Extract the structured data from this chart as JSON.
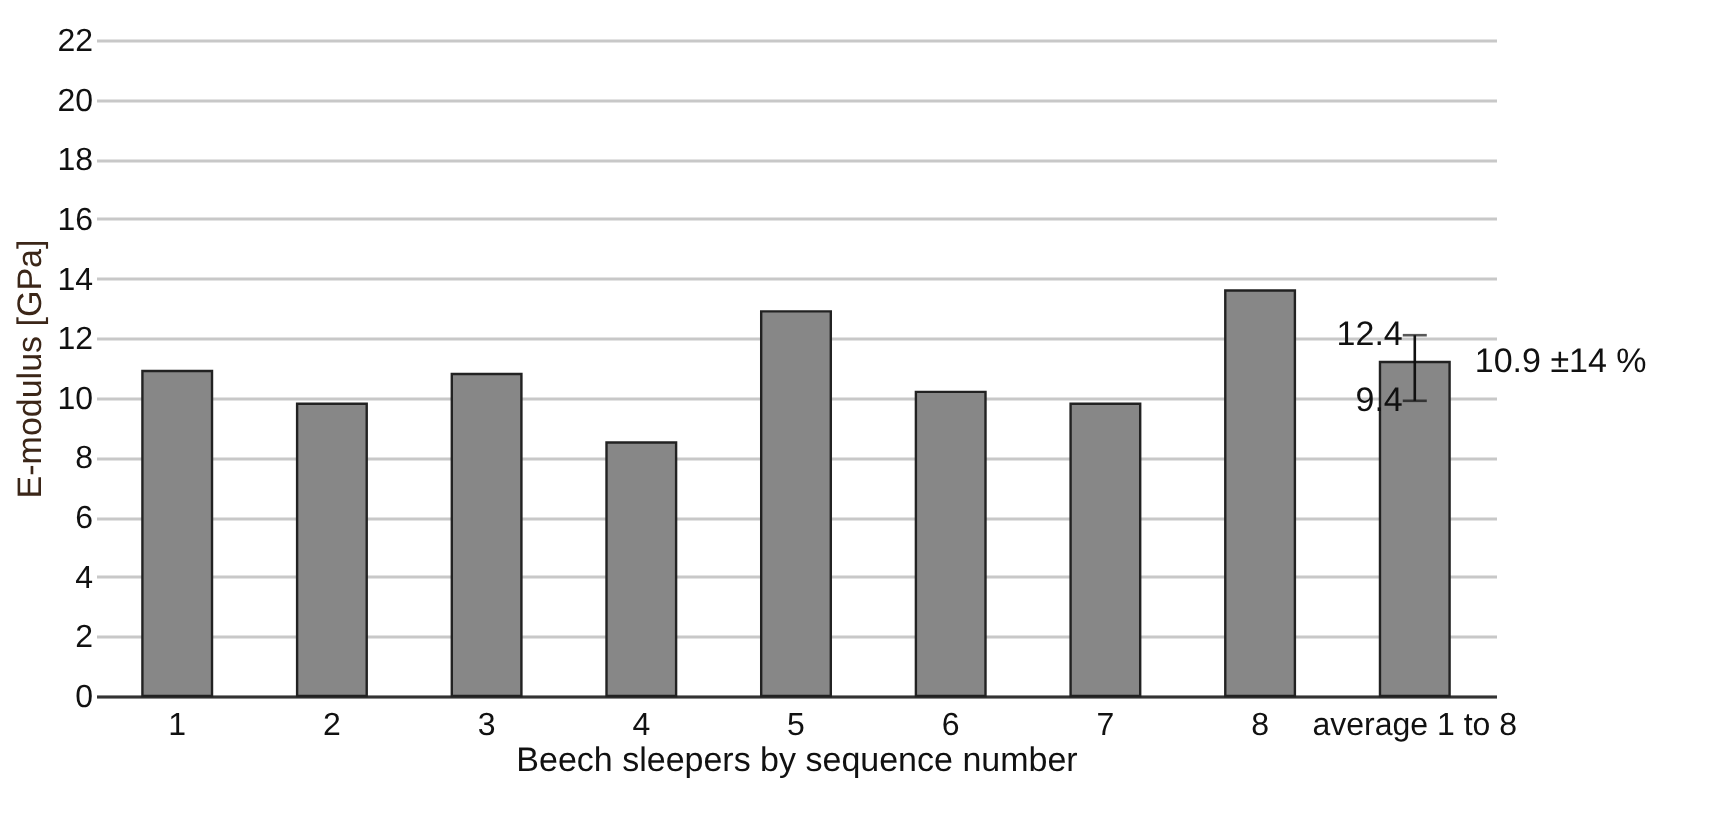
{
  "chart_data": {
    "type": "bar",
    "xlabel": "Beech sleepers by sequence number",
    "ylabel": "E-modulus [GPa]",
    "categories": [
      "1",
      "2",
      "3",
      "4",
      "5",
      "6",
      "7",
      "8",
      "average 1 to 8"
    ],
    "values": [
      10.9,
      9.8,
      10.8,
      8.5,
      12.9,
      10.2,
      9.8,
      13.6,
      11.2
    ],
    "errors": [
      null,
      null,
      null,
      null,
      null,
      null,
      null,
      null,
      [
        9.9,
        12.1
      ]
    ],
    "color": "#878787",
    "ylim": [
      0,
      22
    ],
    "yticks": [
      0,
      2,
      4,
      6,
      8,
      10,
      12,
      14,
      16,
      18,
      20,
      22
    ],
    "grid": true,
    "annotations": [
      {
        "text": "12.4",
        "x": "average 1 to 8",
        "y": 12.1
      },
      {
        "text": "9.4",
        "x": "average 1 to 8",
        "y": 9.9
      },
      {
        "text": "10.9 ±14 %",
        "x": "average 1 to 8",
        "y": 11.2
      }
    ]
  }
}
